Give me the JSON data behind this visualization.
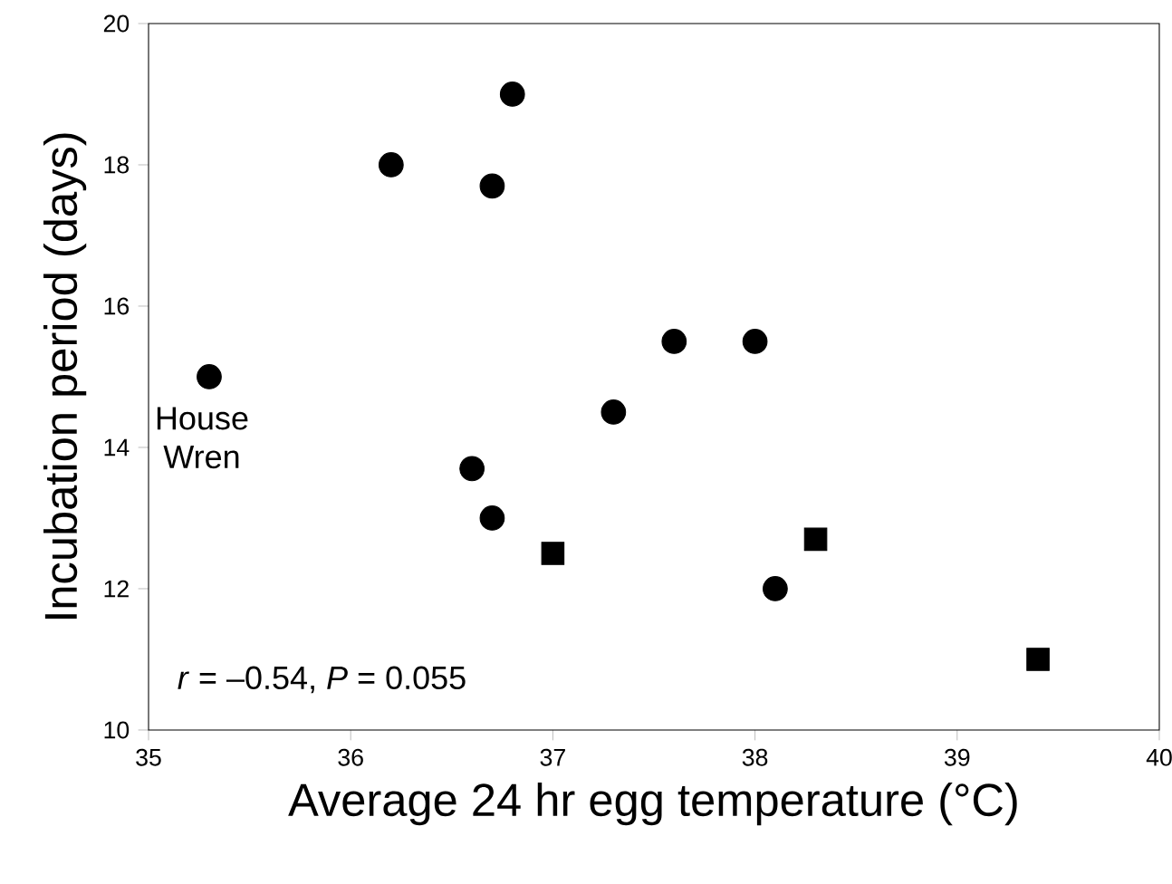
{
  "chart_data": {
    "type": "scatter",
    "xlabel": "Average 24 hr egg temperature (°C)",
    "ylabel": "Incubation period (days)",
    "xlim": [
      35,
      40
    ],
    "xticks": [
      35,
      36,
      37,
      38,
      39,
      40
    ],
    "ylim": [
      10,
      20
    ],
    "yticks": [
      10,
      12,
      14,
      16,
      18,
      20
    ],
    "series": [
      {
        "color": "#000000",
        "marker": "circle",
        "x": [
          35.3,
          36.2,
          36.8,
          36.7,
          37.6,
          38.0,
          37.3,
          36.6,
          36.7,
          38.1
        ],
        "values": [
          15.0,
          18.0,
          19.0,
          17.7,
          15.5,
          15.5,
          14.5,
          13.7,
          13.0,
          12.0
        ]
      },
      {
        "color": "#000000",
        "marker": "square",
        "x": [
          37.0,
          38.3,
          39.4
        ],
        "values": [
          12.5,
          12.7,
          11.0
        ]
      }
    ],
    "annotations": [
      {
        "text": "House Wren",
        "x": 35.3,
        "y": 15.0
      },
      "*r* = –0.54, *P* = 0.055"
    ]
  }
}
